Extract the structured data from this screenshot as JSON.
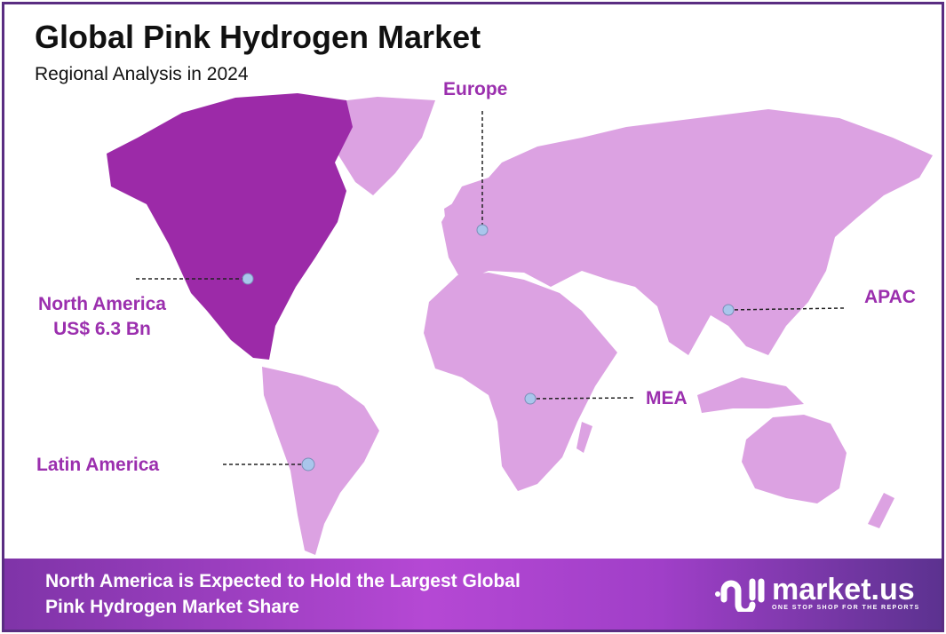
{
  "header": {
    "title": "Global Pink Hydrogen Market",
    "subtitle": "Regional Analysis in 2024"
  },
  "colors": {
    "highlight_region": "#9c2aa8",
    "other_regions": "#dca2e2",
    "label": "#9b2fae",
    "marker": "#a9c6ec",
    "border": "#5a2d82"
  },
  "regions": [
    {
      "name": "North America",
      "value": "US$ 6.3 Bn",
      "highlighted": true
    },
    {
      "name": "Europe"
    },
    {
      "name": "APAC"
    },
    {
      "name": "MEA"
    },
    {
      "name": "Latin America"
    }
  ],
  "footer": {
    "line1": "North America is Expected to Hold the Largest Global",
    "line2": "Pink Hydrogen Market Share"
  },
  "logo": {
    "name": "market.us",
    "tagline": "ONE STOP SHOP FOR THE REPORTS",
    "icon": "market-us-logo-icon"
  }
}
